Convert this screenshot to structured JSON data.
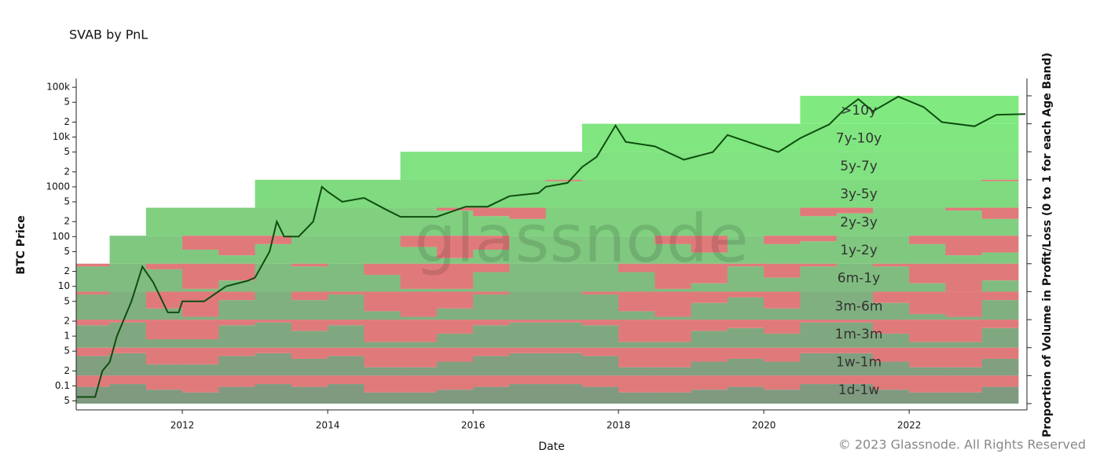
{
  "chart_data": {
    "type": "svab",
    "title": "SVAB by PnL",
    "xlabel": "Date",
    "ylabel": "BTC Price",
    "y2label": "Proportion of Volume in Profit/Loss (0 to 1 for each Age Band)",
    "watermark": "glassnode",
    "copyright": "© 2023 Glassnode. All Rights Reserved",
    "log_y": true,
    "xlim": [
      2010.54,
      2023.62
    ],
    "xticks": [
      2012,
      2014,
      2016,
      2018,
      2020,
      2022
    ],
    "ylim": [
      0.033,
      150000
    ],
    "yticks": [
      {
        "value": 0.05,
        "label": "5"
      },
      0.1,
      {
        "value": 0.2,
        "label": "2"
      },
      {
        "value": 0.5,
        "label": "5"
      },
      1,
      2,
      5,
      10,
      {
        "value": 20,
        "label": "2"
      },
      {
        "value": 50,
        "label": "5"
      },
      100,
      {
        "value": 200,
        "label": "2"
      },
      {
        "value": 500,
        "label": "5"
      },
      1000,
      {
        "value": 2000,
        "label": "2"
      },
      {
        "value": 5000,
        "label": "5"
      },
      {
        "value": 10000,
        "label": "10k"
      },
      {
        "value": 20000,
        "label": "2"
      },
      {
        "value": 50000,
        "label": "5"
      },
      {
        "value": 100000,
        "label": "100k"
      }
    ],
    "price": {
      "color": "#0f4d0f",
      "x": [
        2010.55,
        2010.8,
        2010.9,
        2011.0,
        2011.1,
        2011.3,
        2011.45,
        2011.6,
        2011.8,
        2011.95,
        2012.0,
        2012.3,
        2012.6,
        2012.9,
        2013.0,
        2013.2,
        2013.3,
        2013.4,
        2013.6,
        2013.8,
        2013.92,
        2014.0,
        2014.2,
        2014.5,
        2014.8,
        2015.0,
        2015.5,
        2015.9,
        2016.2,
        2016.5,
        2016.9,
        2017.0,
        2017.3,
        2017.5,
        2017.7,
        2017.96,
        2018.1,
        2018.5,
        2018.9,
        2019.3,
        2019.5,
        2019.9,
        2020.2,
        2020.5,
        2020.9,
        2021.1,
        2021.3,
        2021.5,
        2021.85,
        2022.2,
        2022.45,
        2022.9,
        2023.2,
        2023.6
      ],
      "values": [
        0.06,
        0.06,
        0.2,
        0.3,
        1,
        5,
        25,
        12,
        3,
        3,
        5,
        5,
        10,
        13,
        15,
        50,
        200,
        100,
        100,
        200,
        1000,
        800,
        500,
        600,
        350,
        250,
        250,
        400,
        400,
        650,
        750,
        1000,
        1200,
        2500,
        4000,
        17000,
        8000,
        6500,
        3500,
        5000,
        11000,
        7000,
        5000,
        9500,
        18000,
        35000,
        58000,
        33000,
        65000,
        40000,
        20000,
        16500,
        28000,
        29000
      ]
    },
    "band_x": [
      2010.5,
      2011.0,
      2011.5,
      2012.0,
      2012.5,
      2013.0,
      2013.5,
      2014.0,
      2014.5,
      2015.0,
      2015.5,
      2016.0,
      2016.5,
      2017.0,
      2017.5,
      2018.0,
      2018.5,
      2019.0,
      2019.5,
      2020.0,
      2020.5,
      2021.0,
      2021.5,
      2022.0,
      2022.5,
      2023.0
    ],
    "band_width": 0.5,
    "loss_color": "#e07a7a",
    "bands": [
      {
        "name": ">10y",
        "color": "#80ea80",
        "loss": [
          null,
          null,
          null,
          null,
          null,
          null,
          null,
          null,
          null,
          null,
          null,
          null,
          null,
          null,
          null,
          null,
          null,
          null,
          null,
          null,
          0,
          0,
          0,
          0,
          0,
          0
        ]
      },
      {
        "name": "7y-10y",
        "color": "#80e680",
        "loss": [
          null,
          null,
          null,
          null,
          null,
          null,
          null,
          null,
          null,
          null,
          null,
          null,
          null,
          null,
          0,
          0,
          0,
          0,
          0,
          0,
          0,
          0,
          0,
          0,
          0,
          0
        ]
      },
      {
        "name": "5y-7y",
        "color": "#80e280",
        "loss": [
          null,
          null,
          null,
          null,
          null,
          null,
          null,
          null,
          null,
          0,
          0,
          0,
          0,
          0,
          0,
          0,
          0,
          0,
          0,
          0,
          0,
          0,
          0,
          0,
          0,
          0
        ]
      },
      {
        "name": "3y-5y",
        "color": "#80da80",
        "loss": [
          null,
          null,
          null,
          null,
          null,
          0,
          0,
          0,
          0,
          0,
          0,
          0,
          0,
          0.05,
          0,
          0,
          0,
          0,
          0,
          0,
          0,
          0,
          0,
          0,
          0,
          0.05
        ]
      },
      {
        "name": "2y-3y",
        "color": "#80d080",
        "loss": [
          null,
          null,
          0,
          0,
          0,
          0,
          0,
          0,
          0,
          0,
          0.1,
          0.3,
          0.4,
          0,
          0,
          0,
          0,
          0,
          0,
          0,
          0.3,
          0.2,
          0,
          0,
          0.1,
          0.4
        ]
      },
      {
        "name": "1y-2y",
        "color": "#80c880",
        "loss": [
          null,
          0,
          0,
          0.5,
          0.7,
          0.3,
          0,
          0,
          0,
          0.4,
          0.8,
          0.5,
          0,
          0,
          0,
          0,
          0.3,
          0.6,
          0,
          0.3,
          0.2,
          0,
          0,
          0.3,
          0.7,
          0.6
        ]
      },
      {
        "name": "6m-1y",
        "color": "#80bc80",
        "loss": [
          0.1,
          0,
          0.2,
          0.9,
          0.6,
          0,
          0.1,
          0,
          0.4,
          0.9,
          0.9,
          0.3,
          0,
          0,
          0,
          0.3,
          0.9,
          0.7,
          0.1,
          0.5,
          0.1,
          0,
          0.1,
          0.7,
          1,
          0.6
        ]
      },
      {
        "name": "3m-6m",
        "color": "#80b080",
        "loss": [
          0.1,
          0,
          0.6,
          0.9,
          0.3,
          0,
          0.3,
          0.1,
          0.7,
          0.9,
          0.6,
          0.1,
          0,
          0,
          0.1,
          0.7,
          0.9,
          0.4,
          0.2,
          0.6,
          0,
          0,
          0.4,
          0.8,
          0.9,
          0.3
        ]
      },
      {
        "name": "1m-3m",
        "color": "#80a880",
        "loss": [
          0.2,
          0.1,
          0.7,
          0.7,
          0.2,
          0.1,
          0.4,
          0.2,
          0.8,
          0.8,
          0.5,
          0.2,
          0.1,
          0.1,
          0.2,
          0.8,
          0.8,
          0.4,
          0.3,
          0.5,
          0.1,
          0.1,
          0.5,
          0.8,
          0.8,
          0.3
        ]
      },
      {
        "name": "1w-1m",
        "color": "#80a080",
        "loss": [
          0.3,
          0.2,
          0.6,
          0.6,
          0.3,
          0.2,
          0.4,
          0.3,
          0.7,
          0.7,
          0.5,
          0.3,
          0.2,
          0.2,
          0.3,
          0.7,
          0.7,
          0.5,
          0.4,
          0.5,
          0.2,
          0.2,
          0.5,
          0.7,
          0.7,
          0.4
        ]
      },
      {
        "name": "1d-1w",
        "color": "#809a80",
        "loss": [
          0.4,
          0.3,
          0.5,
          0.6,
          0.4,
          0.3,
          0.4,
          0.3,
          0.6,
          0.6,
          0.5,
          0.4,
          0.3,
          0.3,
          0.4,
          0.6,
          0.6,
          0.5,
          0.4,
          0.5,
          0.3,
          0.3,
          0.5,
          0.6,
          0.6,
          0.4
        ]
      }
    ]
  }
}
